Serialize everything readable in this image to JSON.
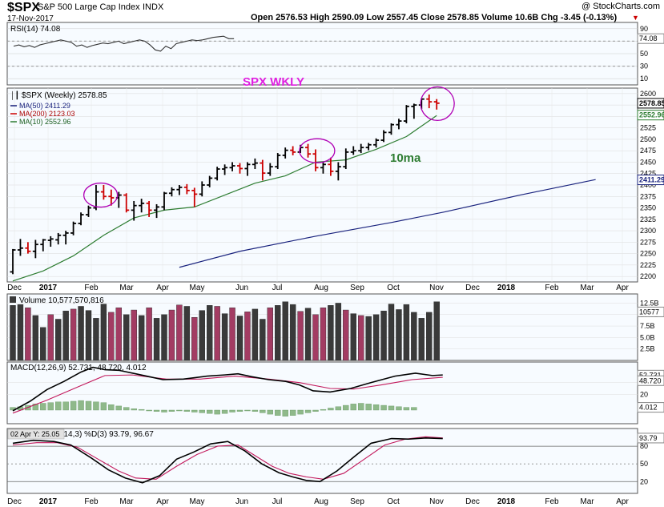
{
  "header": {
    "symbol": "$SPX",
    "name": "S&P 500 Large Cap Index",
    "exchange": "INDX",
    "watermark": "@ StockCharts.com",
    "date": "17-Nov-2017",
    "ohlc": "Open 2576.53   High 2590.09   Low 2557.45   Close 2578.85   Volume 10.6B   Chg -3.45 (-0.13%)"
  },
  "annotations": {
    "title": "SPX WKLY",
    "ma_label": "10ma"
  },
  "colors": {
    "up": "#000000",
    "down": "#cc0000",
    "ma50": "#1a237e",
    "ma200": "#cc0000",
    "ma10": "#2e7d32",
    "vol_up": "#3a3a3a",
    "vol_down": "#a33c63",
    "hist": "#8fb98a",
    "panel_bg": "#f7fbff",
    "circle": "#b000b5",
    "title": "#e020e0"
  },
  "x_axis": {
    "labels": [
      "Dec",
      "2017",
      "Feb",
      "Mar",
      "Apr",
      "May",
      "Jun",
      "Jul",
      "Aug",
      "Sep",
      "Oct",
      "Nov",
      "Dec",
      "2018",
      "Feb",
      "Mar",
      "Apr"
    ],
    "bold_labels": [
      "2017",
      "2018"
    ]
  },
  "chart_data": [
    {
      "type": "line",
      "panel": "rsi",
      "legend": "RSI(14) 74.08",
      "ylim": [
        0,
        100
      ],
      "ticks": [
        10,
        30,
        50,
        70,
        90
      ],
      "guides": [
        30,
        70
      ],
      "badge": "74.08",
      "series": [
        {
          "values": [
            62,
            64,
            61,
            63,
            60,
            64,
            66,
            68,
            70,
            72,
            70,
            68,
            62,
            64,
            60,
            63,
            65,
            67,
            66,
            68,
            70,
            66,
            68,
            70,
            72,
            70,
            64,
            56,
            54,
            62,
            58,
            66,
            68,
            70,
            72,
            71,
            72,
            74,
            76,
            77,
            78,
            74,
            74
          ]
        }
      ]
    },
    {
      "type": "ohlc",
      "panel": "price",
      "legend": "$SPX (Weekly) 2578.85",
      "ma_legends": [
        "MA(50) 2411.29",
        "MA(200) 2123.03",
        "MA(10) 2552.96"
      ],
      "ylim": [
        2188,
        2612
      ],
      "ticks": [
        2200,
        2225,
        2250,
        2275,
        2300,
        2325,
        2350,
        2375,
        2400,
        2425,
        2450,
        2475,
        2500,
        2525,
        2550,
        2575,
        2600
      ],
      "badges": [
        "2578.85",
        "2552.96",
        "2411.29"
      ],
      "bars": [
        [
          2210,
          2260,
          2205,
          2258
        ],
        [
          2258,
          2282,
          2245,
          2262
        ],
        [
          2262,
          2275,
          2250,
          2255
        ],
        [
          2255,
          2280,
          2240,
          2270
        ],
        [
          2270,
          2282,
          2255,
          2280
        ],
        [
          2279,
          2288,
          2265,
          2282
        ],
        [
          2280,
          2295,
          2270,
          2290
        ],
        [
          2290,
          2300,
          2270,
          2295
        ],
        [
          2295,
          2320,
          2290,
          2316
        ],
        [
          2316,
          2340,
          2312,
          2335
        ],
        [
          2335,
          2355,
          2330,
          2350
        ],
        [
          2350,
          2400,
          2345,
          2385
        ],
        [
          2385,
          2400,
          2368,
          2375
        ],
        [
          2375,
          2390,
          2355,
          2372
        ],
        [
          2372,
          2385,
          2350,
          2378
        ],
        [
          2378,
          2382,
          2340,
          2345
        ],
        [
          2345,
          2365,
          2322,
          2355
        ],
        [
          2355,
          2370,
          2340,
          2360
        ],
        [
          2360,
          2365,
          2330,
          2345
        ],
        [
          2345,
          2358,
          2328,
          2352
        ],
        [
          2352,
          2385,
          2345,
          2382
        ],
        [
          2382,
          2395,
          2375,
          2390
        ],
        [
          2390,
          2400,
          2378,
          2395
        ],
        [
          2395,
          2402,
          2380,
          2388
        ],
        [
          2388,
          2394,
          2352,
          2380
        ],
        [
          2380,
          2408,
          2375,
          2400
        ],
        [
          2400,
          2420,
          2395,
          2415
        ],
        [
          2415,
          2440,
          2410,
          2435
        ],
        [
          2435,
          2445,
          2422,
          2438
        ],
        [
          2438,
          2450,
          2430,
          2442
        ],
        [
          2442,
          2448,
          2425,
          2436
        ],
        [
          2436,
          2450,
          2420,
          2445
        ],
        [
          2445,
          2458,
          2435,
          2448
        ],
        [
          2448,
          2455,
          2410,
          2426
        ],
        [
          2426,
          2448,
          2420,
          2440
        ],
        [
          2440,
          2470,
          2435,
          2465
        ],
        [
          2465,
          2482,
          2458,
          2476
        ],
        [
          2476,
          2485,
          2465,
          2472
        ],
        [
          2472,
          2488,
          2470,
          2482
        ],
        [
          2482,
          2490,
          2460,
          2468
        ],
        [
          2468,
          2478,
          2430,
          2438
        ],
        [
          2438,
          2450,
          2425,
          2445
        ],
        [
          2445,
          2460,
          2420,
          2430
        ],
        [
          2430,
          2450,
          2410,
          2440
        ],
        [
          2440,
          2480,
          2435,
          2472
        ],
        [
          2472,
          2485,
          2466,
          2475
        ],
        [
          2475,
          2490,
          2470,
          2482
        ],
        [
          2482,
          2492,
          2476,
          2488
        ],
        [
          2488,
          2502,
          2482,
          2498
        ],
        [
          2498,
          2520,
          2494,
          2515
        ],
        [
          2515,
          2535,
          2510,
          2532
        ],
        [
          2532,
          2545,
          2522,
          2540
        ],
        [
          2540,
          2575,
          2535,
          2572
        ],
        [
          2572,
          2578,
          2545,
          2575
        ],
        [
          2575,
          2590,
          2566,
          2588
        ],
        [
          2588,
          2598,
          2568,
          2582
        ],
        [
          2582,
          2588,
          2565,
          2579
        ]
      ],
      "ma50": [
        [
          22,
          2220
        ],
        [
          30,
          2255
        ],
        [
          40,
          2288
        ],
        [
          50,
          2318
        ],
        [
          57,
          2341
        ],
        [
          67,
          2378
        ],
        [
          77,
          2412
        ]
      ],
      "ma200": [],
      "ma10": [
        [
          0,
          2190
        ],
        [
          4,
          2212
        ],
        [
          8,
          2245
        ],
        [
          12,
          2290
        ],
        [
          16,
          2328
        ],
        [
          20,
          2345
        ],
        [
          24,
          2352
        ],
        [
          28,
          2378
        ],
        [
          32,
          2404
        ],
        [
          36,
          2420
        ],
        [
          40,
          2450
        ],
        [
          44,
          2455
        ],
        [
          48,
          2478
        ],
        [
          52,
          2506
        ],
        [
          56,
          2552
        ]
      ]
    },
    {
      "type": "bar",
      "panel": "volume",
      "legend": "Volume 10,577,570,816",
      "ylim": [
        0,
        14.5
      ],
      "ticks": [
        2.5,
        5,
        7.5,
        10,
        12.5
      ],
      "tick_labels": [
        "2.5B",
        "5.0B",
        "7.5B",
        "10.0B",
        "12.5B"
      ],
      "badge": "10577",
      "values": [
        12.0,
        12.2,
        11.5,
        9.8,
        7.2,
        10.0,
        9.0,
        10.8,
        11.2,
        11.8,
        10.9,
        9.2,
        12.3,
        10.5,
        11.5,
        10.0,
        11.0,
        9.8,
        11.5,
        9.2,
        10.0,
        11.0,
        12.1,
        11.8,
        9.4,
        10.9,
        12.0,
        11.8,
        10.2,
        11.5,
        9.7,
        10.6,
        11.2,
        9.0,
        11.5,
        12.0,
        12.8,
        12.2,
        10.7,
        11.4,
        10.0,
        11.5,
        12.0,
        12.5,
        11.0,
        10.2,
        9.8,
        9.6,
        10.0,
        10.8,
        12.3,
        11.1,
        12.2,
        10.5,
        9.2,
        10.5,
        12.8,
        12.6,
        11.2,
        10.3,
        10.7
      ],
      "down": [
        false,
        false,
        true,
        false,
        false,
        true,
        false,
        false,
        true,
        false,
        false,
        false,
        false,
        true,
        true,
        false,
        true,
        false,
        true,
        false,
        false,
        true,
        true,
        false,
        true,
        false,
        false,
        true,
        false,
        true,
        false,
        true,
        false,
        false,
        true,
        false,
        false,
        false,
        true,
        false,
        true,
        true,
        false,
        false,
        true,
        false,
        true,
        false,
        false,
        false,
        false,
        false,
        false,
        false,
        false,
        false,
        false,
        false,
        false,
        true,
        true
      ]
    },
    {
      "type": "line",
      "panel": "macd",
      "legend": "MACD(12,26,9) 52.731, 48.720, 4.012",
      "ylim": [
        -30,
        75
      ],
      "ticks": [
        40,
        20
      ],
      "badges": [
        "52.731",
        "48.720",
        "4.012"
      ],
      "series": [
        {
          "name": "MACD",
          "values": [
            [
              0,
              -8
            ],
            [
              10,
              8
            ],
            [
              20,
              28
            ],
            [
              30,
              42
            ],
            [
              40,
              58
            ],
            [
              47,
              66
            ],
            [
              54,
              62
            ],
            [
              62,
              61
            ],
            [
              72,
              55
            ],
            [
              80,
              50
            ],
            [
              88,
              45
            ],
            [
              100,
              46
            ],
            [
              114,
              51
            ],
            [
              124,
              53
            ],
            [
              132,
              55
            ],
            [
              140,
              50
            ],
            [
              150,
              45
            ],
            [
              160,
              42
            ],
            [
              168,
              36
            ],
            [
              176,
              26
            ],
            [
              186,
              24
            ],
            [
              198,
              30
            ],
            [
              210,
              40
            ],
            [
              224,
              51
            ],
            [
              236,
              56
            ],
            [
              246,
              52
            ],
            [
              252,
              53
            ]
          ]
        },
        {
          "name": "Signal",
          "values": [
            [
              0,
              -12
            ],
            [
              20,
              10
            ],
            [
              40,
              35
            ],
            [
              54,
              52
            ],
            [
              70,
              53
            ],
            [
              90,
              46
            ],
            [
              110,
              46
            ],
            [
              130,
              51
            ],
            [
              150,
              46
            ],
            [
              168,
              40
            ],
            [
              186,
              30
            ],
            [
              200,
              29
            ],
            [
              216,
              36
            ],
            [
              234,
              45
            ],
            [
              252,
              49
            ]
          ]
        }
      ],
      "hist": [
        4,
        5,
        7,
        9,
        10,
        11,
        12,
        12,
        13,
        14,
        13,
        12,
        11,
        8,
        6,
        4,
        2,
        1,
        -1,
        -2,
        -3,
        -2,
        -1,
        -2,
        -3,
        -4,
        -5,
        -6,
        -5,
        -3,
        -2,
        -1,
        -2,
        -4,
        -6,
        -8,
        -9,
        -8,
        -6,
        -4,
        -2,
        1,
        3,
        5,
        7,
        9,
        10,
        9,
        8,
        7,
        6,
        5,
        4,
        4
      ]
    },
    {
      "type": "line",
      "panel": "stoch",
      "legend": "Slow STO %K(14,3) %D(3) 93.79, 96.67",
      "tooltip": "02 Apr Y: 25.05",
      "ylim": [
        0,
        110
      ],
      "ticks": [
        20,
        50,
        80
      ],
      "guides": [
        20,
        80
      ],
      "badge": "93.79",
      "series": [
        {
          "name": "%K",
          "values": [
            [
              0,
              85
            ],
            [
              12,
              90
            ],
            [
              24,
              88
            ],
            [
              34,
              82
            ],
            [
              46,
              60
            ],
            [
              56,
              40
            ],
            [
              66,
              26
            ],
            [
              76,
              18
            ],
            [
              86,
              30
            ],
            [
              96,
              58
            ],
            [
              106,
              70
            ],
            [
              116,
              84
            ],
            [
              126,
              88
            ],
            [
              136,
              72
            ],
            [
              146,
              50
            ],
            [
              156,
              35
            ],
            [
              164,
              28
            ],
            [
              172,
              22
            ],
            [
              180,
              20
            ],
            [
              190,
              38
            ],
            [
              200,
              62
            ],
            [
              210,
              85
            ],
            [
              222,
              93
            ],
            [
              232,
              92
            ],
            [
              242,
              94
            ],
            [
              252,
              93
            ]
          ]
        },
        {
          "name": "%D",
          "values": [
            [
              0,
              82
            ],
            [
              14,
              86
            ],
            [
              26,
              86
            ],
            [
              38,
              78
            ],
            [
              50,
              58
            ],
            [
              62,
              38
            ],
            [
              72,
              26
            ],
            [
              84,
              24
            ],
            [
              96,
              46
            ],
            [
              108,
              66
            ],
            [
              120,
              80
            ],
            [
              132,
              82
            ],
            [
              142,
              64
            ],
            [
              152,
              46
            ],
            [
              162,
              34
            ],
            [
              172,
              28
            ],
            [
              182,
              24
            ],
            [
              194,
              34
            ],
            [
              206,
              58
            ],
            [
              218,
              82
            ],
            [
              230,
              92
            ],
            [
              242,
              96
            ],
            [
              252,
              94
            ]
          ]
        }
      ]
    }
  ]
}
